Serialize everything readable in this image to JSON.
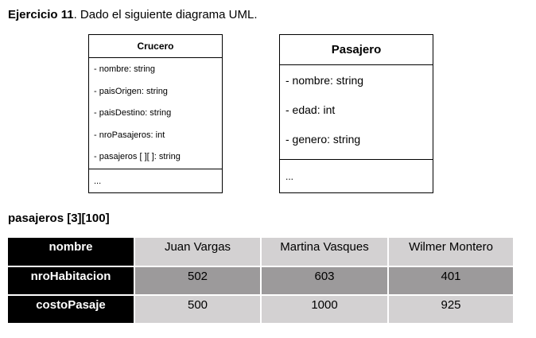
{
  "heading": {
    "bold": "Ejercicio 11",
    "rest": ". Dado el siguiente diagrama UML."
  },
  "classes": {
    "crucero": {
      "name": "Crucero",
      "attributes": [
        "- nombre: string",
        "- paisOrigen: string",
        "- paisDestino: string",
        "- nroPasajeros: int",
        "- pasajeros [ ][ ]: string"
      ],
      "operations": "..."
    },
    "pasajero": {
      "name": "Pasajero",
      "attributes": [
        "- nombre: string",
        "- edad: int",
        "- genero: string"
      ],
      "operations": "..."
    }
  },
  "array_label": "pasajeros [3][100]",
  "table": {
    "rows": [
      {
        "header": "nombre",
        "values": [
          "Juan Vargas",
          "Martina Vasques",
          "Wilmer Montero"
        ]
      },
      {
        "header": "nroHabitacion",
        "values": [
          "502",
          "603",
          "401"
        ]
      },
      {
        "header": "costoPasaje",
        "values": [
          "500",
          "1000",
          "925"
        ]
      }
    ]
  },
  "colors": {
    "header_bg": "#000000",
    "light_cell": "#d3d1d2",
    "dark_cell": "#9c9a9b"
  }
}
